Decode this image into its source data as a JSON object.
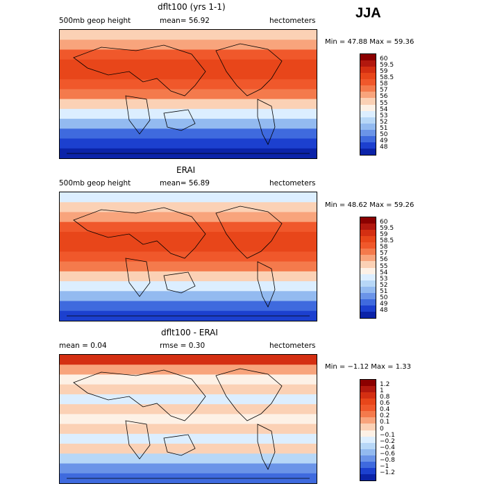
{
  "season": "JJA",
  "panels": [
    {
      "title": "dflt100 (yrs 1-1)",
      "left_label": "500mb geop height",
      "center_label": "mean=   56.92",
      "right_label": "hectometers",
      "minmax": "Min =  47.88 Max =  59.36",
      "levels": [
        "60",
        "59.5",
        "59",
        "58.5",
        "58",
        "57",
        "56",
        "55",
        "54",
        "53",
        "52",
        "51",
        "50",
        "49",
        "48"
      ],
      "colors": [
        "#8b0000",
        "#b2180e",
        "#d42f12",
        "#e8461a",
        "#f0582b",
        "#f47a4c",
        "#f8a47c",
        "#fbd1b5",
        "#fdf1e6",
        "#dceeff",
        "#b7d7f7",
        "#93baf0",
        "#6b94e8",
        "#3f6ade",
        "#1c40cf",
        "#0b23a8"
      ],
      "bands": [
        "#fbd1b5",
        "#f8a47c",
        "#f0582b",
        "#e8461a",
        "#e8461a",
        "#f0582b",
        "#f47a4c",
        "#fbd1b5",
        "#dceeff",
        "#93baf0",
        "#3f6ade",
        "#1c40cf",
        "#0b23a8"
      ]
    },
    {
      "title": "ERAI",
      "left_label": "500mb geop height",
      "center_label": "mean=   56.89",
      "right_label": "hectometers",
      "minmax": "Min =  48.62 Max =  59.26",
      "levels": [
        "60",
        "59.5",
        "59",
        "58.5",
        "58",
        "57",
        "56",
        "55",
        "54",
        "53",
        "52",
        "51",
        "50",
        "49",
        "48"
      ],
      "colors": [
        "#8b0000",
        "#b2180e",
        "#d42f12",
        "#e8461a",
        "#f0582b",
        "#f47a4c",
        "#f8a47c",
        "#fbd1b5",
        "#fdf1e6",
        "#dceeff",
        "#b7d7f7",
        "#93baf0",
        "#6b94e8",
        "#3f6ade",
        "#1c40cf",
        "#0b23a8"
      ],
      "bands": [
        "#dceeff",
        "#fbd1b5",
        "#f8a47c",
        "#f0582b",
        "#e8461a",
        "#e8461a",
        "#f0582b",
        "#f47a4c",
        "#fbd1b5",
        "#dceeff",
        "#93baf0",
        "#3f6ade",
        "#1c40cf"
      ]
    },
    {
      "title": "dflt100 - ERAI",
      "left_label": "mean =     0.04",
      "center_label": "rmse =     0.30",
      "right_label": "hectometers",
      "minmax": "Min =  −1.12 Max =    1.33",
      "levels": [
        "1.2",
        "1",
        "0.8",
        "0.6",
        "0.4",
        "0.2",
        "0.1",
        "0",
        "−0.1",
        "−0.2",
        "−0.4",
        "−0.6",
        "−0.8",
        "−1",
        "−1.2"
      ],
      "colors": [
        "#8b0000",
        "#b2180e",
        "#d42f12",
        "#e8461a",
        "#f0582b",
        "#f47a4c",
        "#f8a47c",
        "#fbd1b5",
        "#fdf1e6",
        "#dceeff",
        "#b7d7f7",
        "#93baf0",
        "#6b94e8",
        "#3f6ade",
        "#1c40cf",
        "#0b23a8"
      ],
      "bands": [
        "#d42f12",
        "#f8a47c",
        "#fdf1e6",
        "#fbd1b5",
        "#dceeff",
        "#fbd1b5",
        "#fdf1e6",
        "#fbd1b5",
        "#dceeff",
        "#fbd1b5",
        "#b7d7f7",
        "#6b94e8",
        "#3f6ade"
      ]
    }
  ]
}
